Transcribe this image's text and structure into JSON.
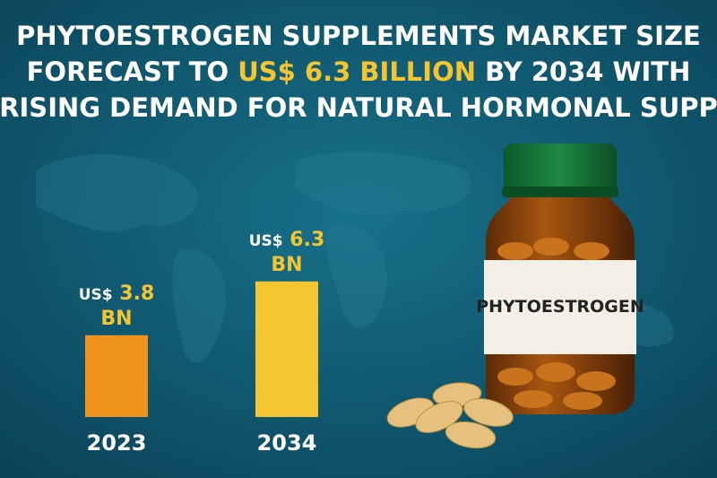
{
  "chart_data": {
    "type": "bar",
    "title": [
      "PHYTOESTROGEN SUPPLEMENTS MARKET SIZE",
      "FORECAST TO ",
      "US$ 6.3 BILLION",
      " BY 2034 WITH",
      "RISING DEMAND FOR NATURAL HORMONAL SUPP"
    ],
    "categories": [
      "2023",
      "2034"
    ],
    "values": [
      3.8,
      6.3
    ],
    "value_prefix": "US$",
    "value_suffix": "BN",
    "colors": [
      "#f0931c",
      "#f4c530"
    ]
  },
  "bottle_label": "PHYTOESTROGEN"
}
